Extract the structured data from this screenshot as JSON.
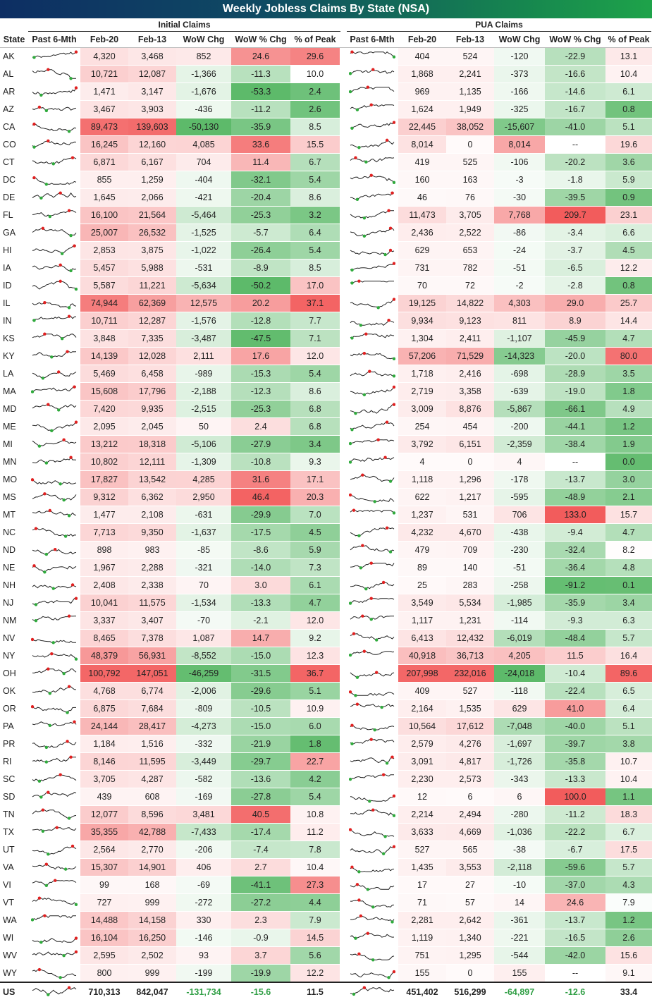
{
  "title": "Weekly Jobless Claims By State (NSA)",
  "sections": {
    "initial": "Initial Claims",
    "pua": "PUA Claims"
  },
  "columns": [
    "State",
    "Past 6-Mth",
    "Feb-20",
    "Feb-13",
    "WoW Chg",
    "WoW % Chg",
    "% of Peak",
    "Past 6-Mth",
    "Feb-20",
    "Feb-13",
    "WoW Chg",
    "WoW % Chg",
    "% of Peak"
  ],
  "colors": {
    "red": "#f25c5c",
    "green": "#5dba6a",
    "spark_line": "#222222",
    "spark_max": "#e02020",
    "spark_min": "#2faa3c"
  },
  "chart_data": {
    "type": "table",
    "rows": [
      [
        "AK",
        "4,320",
        "3,468",
        "852",
        "24.6",
        "29.6",
        "404",
        "524",
        "-120",
        "-22.9",
        "13.1"
      ],
      [
        "AL",
        "10,721",
        "12,087",
        "-1,366",
        "-11.3",
        "10.0",
        "1,868",
        "2,241",
        "-373",
        "-16.6",
        "10.4"
      ],
      [
        "AR",
        "1,471",
        "3,147",
        "-1,676",
        "-53.3",
        "2.4",
        "969",
        "1,135",
        "-166",
        "-14.6",
        "6.1"
      ],
      [
        "AZ",
        "3,467",
        "3,903",
        "-436",
        "-11.2",
        "2.6",
        "1,624",
        "1,949",
        "-325",
        "-16.7",
        "0.8"
      ],
      [
        "CA",
        "89,473",
        "139,603",
        "-50,130",
        "-35.9",
        "8.5",
        "22,445",
        "38,052",
        "-15,607",
        "-41.0",
        "5.1"
      ],
      [
        "CO",
        "16,245",
        "12,160",
        "4,085",
        "33.6",
        "15.5",
        "8,014",
        "0",
        "8,014",
        "--",
        "19.6"
      ],
      [
        "CT",
        "6,871",
        "6,167",
        "704",
        "11.4",
        "6.7",
        "419",
        "525",
        "-106",
        "-20.2",
        "3.6"
      ],
      [
        "DC",
        "855",
        "1,259",
        "-404",
        "-32.1",
        "5.4",
        "160",
        "163",
        "-3",
        "-1.8",
        "5.9"
      ],
      [
        "DE",
        "1,645",
        "2,066",
        "-421",
        "-20.4",
        "8.6",
        "46",
        "76",
        "-30",
        "-39.5",
        "0.9"
      ],
      [
        "FL",
        "16,100",
        "21,564",
        "-5,464",
        "-25.3",
        "3.2",
        "11,473",
        "3,705",
        "7,768",
        "209.7",
        "23.1"
      ],
      [
        "GA",
        "25,007",
        "26,532",
        "-1,525",
        "-5.7",
        "6.4",
        "2,436",
        "2,522",
        "-86",
        "-3.4",
        "6.6"
      ],
      [
        "HI",
        "2,853",
        "3,875",
        "-1,022",
        "-26.4",
        "5.4",
        "629",
        "653",
        "-24",
        "-3.7",
        "4.5"
      ],
      [
        "IA",
        "5,457",
        "5,988",
        "-531",
        "-8.9",
        "8.5",
        "731",
        "782",
        "-51",
        "-6.5",
        "12.2"
      ],
      [
        "ID",
        "5,587",
        "11,221",
        "-5,634",
        "-50.2",
        "17.0",
        "70",
        "72",
        "-2",
        "-2.8",
        "0.8"
      ],
      [
        "IL",
        "74,944",
        "62,369",
        "12,575",
        "20.2",
        "37.1",
        "19,125",
        "14,822",
        "4,303",
        "29.0",
        "25.7"
      ],
      [
        "IN",
        "10,711",
        "12,287",
        "-1,576",
        "-12.8",
        "7.7",
        "9,934",
        "9,123",
        "811",
        "8.9",
        "14.4"
      ],
      [
        "KS",
        "3,848",
        "7,335",
        "-3,487",
        "-47.5",
        "7.1",
        "1,304",
        "2,411",
        "-1,107",
        "-45.9",
        "4.7"
      ],
      [
        "KY",
        "14,139",
        "12,028",
        "2,111",
        "17.6",
        "12.0",
        "57,206",
        "71,529",
        "-14,323",
        "-20.0",
        "80.0"
      ],
      [
        "LA",
        "5,469",
        "6,458",
        "-989",
        "-15.3",
        "5.4",
        "1,718",
        "2,416",
        "-698",
        "-28.9",
        "3.5"
      ],
      [
        "MA",
        "15,608",
        "17,796",
        "-2,188",
        "-12.3",
        "8.6",
        "2,719",
        "3,358",
        "-639",
        "-19.0",
        "1.8"
      ],
      [
        "MD",
        "7,420",
        "9,935",
        "-2,515",
        "-25.3",
        "6.8",
        "3,009",
        "8,876",
        "-5,867",
        "-66.1",
        "4.9"
      ],
      [
        "ME",
        "2,095",
        "2,045",
        "50",
        "2.4",
        "6.8",
        "254",
        "454",
        "-200",
        "-44.1",
        "1.2"
      ],
      [
        "MI",
        "13,212",
        "18,318",
        "-5,106",
        "-27.9",
        "3.4",
        "3,792",
        "6,151",
        "-2,359",
        "-38.4",
        "1.9"
      ],
      [
        "MN",
        "10,802",
        "12,111",
        "-1,309",
        "-10.8",
        "9.3",
        "4",
        "0",
        "4",
        "--",
        "0.0"
      ],
      [
        "MO",
        "17,827",
        "13,542",
        "4,285",
        "31.6",
        "17.1",
        "1,118",
        "1,296",
        "-178",
        "-13.7",
        "3.0"
      ],
      [
        "MS",
        "9,312",
        "6,362",
        "2,950",
        "46.4",
        "20.3",
        "622",
        "1,217",
        "-595",
        "-48.9",
        "2.1"
      ],
      [
        "MT",
        "1,477",
        "2,108",
        "-631",
        "-29.9",
        "7.0",
        "1,237",
        "531",
        "706",
        "133.0",
        "15.7"
      ],
      [
        "NC",
        "7,713",
        "9,350",
        "-1,637",
        "-17.5",
        "4.5",
        "4,232",
        "4,670",
        "-438",
        "-9.4",
        "4.7"
      ],
      [
        "ND",
        "898",
        "983",
        "-85",
        "-8.6",
        "5.9",
        "479",
        "709",
        "-230",
        "-32.4",
        "8.2"
      ],
      [
        "NE",
        "1,967",
        "2,288",
        "-321",
        "-14.0",
        "7.3",
        "89",
        "140",
        "-51",
        "-36.4",
        "4.8"
      ],
      [
        "NH",
        "2,408",
        "2,338",
        "70",
        "3.0",
        "6.1",
        "25",
        "283",
        "-258",
        "-91.2",
        "0.1"
      ],
      [
        "NJ",
        "10,041",
        "11,575",
        "-1,534",
        "-13.3",
        "4.7",
        "3,549",
        "5,534",
        "-1,985",
        "-35.9",
        "3.4"
      ],
      [
        "NM",
        "3,337",
        "3,407",
        "-70",
        "-2.1",
        "12.0",
        "1,117",
        "1,231",
        "-114",
        "-9.3",
        "6.3"
      ],
      [
        "NV",
        "8,465",
        "7,378",
        "1,087",
        "14.7",
        "9.2",
        "6,413",
        "12,432",
        "-6,019",
        "-48.4",
        "5.7"
      ],
      [
        "NY",
        "48,379",
        "56,931",
        "-8,552",
        "-15.0",
        "12.3",
        "40,918",
        "36,713",
        "4,205",
        "11.5",
        "16.4"
      ],
      [
        "OH",
        "100,792",
        "147,051",
        "-46,259",
        "-31.5",
        "36.7",
        "207,998",
        "232,016",
        "-24,018",
        "-10.4",
        "89.6"
      ],
      [
        "OK",
        "4,768",
        "6,774",
        "-2,006",
        "-29.6",
        "5.1",
        "409",
        "527",
        "-118",
        "-22.4",
        "6.5"
      ],
      [
        "OR",
        "6,875",
        "7,684",
        "-809",
        "-10.5",
        "10.9",
        "2,164",
        "1,535",
        "629",
        "41.0",
        "6.4"
      ],
      [
        "PA",
        "24,144",
        "28,417",
        "-4,273",
        "-15.0",
        "6.0",
        "10,564",
        "17,612",
        "-7,048",
        "-40.0",
        "5.1"
      ],
      [
        "PR",
        "1,184",
        "1,516",
        "-332",
        "-21.9",
        "1.8",
        "2,579",
        "4,276",
        "-1,697",
        "-39.7",
        "3.8"
      ],
      [
        "RI",
        "8,146",
        "11,595",
        "-3,449",
        "-29.7",
        "22.7",
        "3,091",
        "4,817",
        "-1,726",
        "-35.8",
        "10.7"
      ],
      [
        "SC",
        "3,705",
        "4,287",
        "-582",
        "-13.6",
        "4.2",
        "2,230",
        "2,573",
        "-343",
        "-13.3",
        "10.4"
      ],
      [
        "SD",
        "439",
        "608",
        "-169",
        "-27.8",
        "5.4",
        "12",
        "6",
        "6",
        "100.0",
        "1.1"
      ],
      [
        "TN",
        "12,077",
        "8,596",
        "3,481",
        "40.5",
        "10.8",
        "2,214",
        "2,494",
        "-280",
        "-11.2",
        "18.3"
      ],
      [
        "TX",
        "35,355",
        "42,788",
        "-7,433",
        "-17.4",
        "11.2",
        "3,633",
        "4,669",
        "-1,036",
        "-22.2",
        "6.7"
      ],
      [
        "UT",
        "2,564",
        "2,770",
        "-206",
        "-7.4",
        "7.8",
        "527",
        "565",
        "-38",
        "-6.7",
        "17.5"
      ],
      [
        "VA",
        "15,307",
        "14,901",
        "406",
        "2.7",
        "10.4",
        "1,435",
        "3,553",
        "-2,118",
        "-59.6",
        "5.7"
      ],
      [
        "VI",
        "99",
        "168",
        "-69",
        "-41.1",
        "27.3",
        "17",
        "27",
        "-10",
        "-37.0",
        "4.3"
      ],
      [
        "VT",
        "727",
        "999",
        "-272",
        "-27.2",
        "4.4",
        "71",
        "57",
        "14",
        "24.6",
        "7.9"
      ],
      [
        "WA",
        "14,488",
        "14,158",
        "330",
        "2.3",
        "7.9",
        "2,281",
        "2,642",
        "-361",
        "-13.7",
        "1.2"
      ],
      [
        "WI",
        "16,104",
        "16,250",
        "-146",
        "-0.9",
        "14.5",
        "1,119",
        "1,340",
        "-221",
        "-16.5",
        "2.6"
      ],
      [
        "WV",
        "2,595",
        "2,502",
        "93",
        "3.7",
        "5.6",
        "751",
        "1,295",
        "-544",
        "-42.0",
        "15.6"
      ],
      [
        "WY",
        "800",
        "999",
        "-199",
        "-19.9",
        "12.2",
        "155",
        "0",
        "155",
        "--",
        "9.1"
      ]
    ],
    "total": [
      "US",
      "710,313",
      "842,047",
      "-131,734",
      "-15.6",
      "11.5",
      "451,402",
      "516,299",
      "-64,897",
      "-12.6",
      "33.4"
    ]
  }
}
